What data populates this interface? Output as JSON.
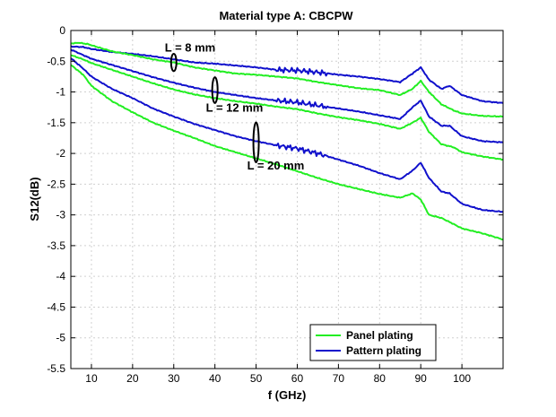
{
  "chart_data": {
    "type": "line",
    "title": "Material type A: CBCPW",
    "xlabel": "f (GHz)",
    "ylabel": "S12(dB)",
    "xlim": [
      5,
      110
    ],
    "ylim": [
      -5.5,
      0
    ],
    "xticks": [
      10,
      20,
      30,
      40,
      50,
      60,
      70,
      80,
      90,
      100
    ],
    "yticks": [
      0,
      -0.5,
      -1,
      -1.5,
      -2,
      -2.5,
      -3,
      -3.5,
      -4,
      -4.5,
      -5,
      -5.5
    ],
    "xtick_labels": [
      "10",
      "20",
      "30",
      "40",
      "50",
      "60",
      "70",
      "80",
      "90",
      "100"
    ],
    "ytick_labels": [
      "0",
      "-0.5",
      "-1",
      "-1.5",
      "-2",
      "-2.5",
      "-3",
      "-3.5",
      "-4",
      "-4.5",
      "-5",
      "-5.5"
    ],
    "grid": true,
    "legend_position": "bottom-right",
    "colors": {
      "panel": "#22ee22",
      "pattern": "#1010cc"
    },
    "legend": [
      {
        "label": "Panel plating",
        "color": "#22ee22"
      },
      {
        "label": "Pattern plating",
        "color": "#1010cc"
      }
    ],
    "annotations": [
      {
        "label": "L = 8 mm",
        "x": 30,
        "y_center": -0.52,
        "y_span": 0.28
      },
      {
        "label": "L = 12 mm",
        "x": 40,
        "y_center": -0.97,
        "y_span": 0.42
      },
      {
        "label": "L = 20 mm",
        "x": 50,
        "y_center": -1.82,
        "y_span": 0.65
      }
    ],
    "series": [
      {
        "group": "L = 8 mm",
        "plating": "Pattern plating",
        "color": "#1010cc",
        "x": [
          5,
          8,
          10,
          15,
          20,
          25,
          30,
          35,
          40,
          45,
          50,
          55,
          60,
          65,
          70,
          75,
          80,
          85,
          88,
          90,
          92,
          95,
          97,
          100,
          105,
          110
        ],
        "y": [
          -0.26,
          -0.27,
          -0.3,
          -0.35,
          -0.38,
          -0.42,
          -0.47,
          -0.52,
          -0.54,
          -0.57,
          -0.6,
          -0.64,
          -0.65,
          -0.68,
          -0.72,
          -0.75,
          -0.79,
          -0.84,
          -0.7,
          -0.6,
          -0.8,
          -0.95,
          -0.9,
          -1.05,
          -1.15,
          -1.18
        ]
      },
      {
        "group": "L = 8 mm",
        "plating": "Panel plating",
        "color": "#22ee22",
        "x": [
          5,
          7,
          9,
          12,
          15,
          20,
          25,
          30,
          35,
          40,
          45,
          50,
          55,
          60,
          65,
          70,
          75,
          80,
          85,
          88,
          90,
          92,
          95,
          98,
          100,
          105,
          110
        ],
        "y": [
          -0.21,
          -0.2,
          -0.22,
          -0.28,
          -0.34,
          -0.4,
          -0.47,
          -0.52,
          -0.6,
          -0.65,
          -0.7,
          -0.72,
          -0.75,
          -0.78,
          -0.84,
          -0.89,
          -0.94,
          -0.97,
          -1.05,
          -0.95,
          -0.82,
          -1.0,
          -1.2,
          -1.3,
          -1.35,
          -1.39,
          -1.4
        ]
      },
      {
        "group": "L = 12 mm",
        "plating": "Pattern plating",
        "color": "#1010cc",
        "x": [
          5,
          8,
          10,
          15,
          20,
          25,
          30,
          35,
          40,
          45,
          50,
          55,
          60,
          65,
          70,
          75,
          80,
          85,
          88,
          90,
          92,
          95,
          97,
          100,
          105,
          110
        ],
        "y": [
          -0.31,
          -0.4,
          -0.46,
          -0.56,
          -0.66,
          -0.76,
          -0.85,
          -0.93,
          -1.0,
          -1.05,
          -1.1,
          -1.14,
          -1.17,
          -1.22,
          -1.27,
          -1.32,
          -1.38,
          -1.44,
          -1.25,
          -1.14,
          -1.4,
          -1.55,
          -1.55,
          -1.72,
          -1.8,
          -1.82
        ]
      },
      {
        "group": "L = 12 mm",
        "plating": "Panel plating",
        "color": "#22ee22",
        "x": [
          5,
          8,
          10,
          15,
          20,
          25,
          30,
          35,
          40,
          45,
          50,
          55,
          60,
          65,
          70,
          75,
          80,
          85,
          88,
          90,
          92,
          95,
          98,
          100,
          105,
          110
        ],
        "y": [
          -0.4,
          -0.47,
          -0.53,
          -0.64,
          -0.75,
          -0.86,
          -0.96,
          -1.04,
          -1.1,
          -1.15,
          -1.19,
          -1.24,
          -1.28,
          -1.35,
          -1.41,
          -1.46,
          -1.52,
          -1.6,
          -1.5,
          -1.42,
          -1.65,
          -1.85,
          -1.9,
          -1.98,
          -2.05,
          -2.1
        ]
      },
      {
        "group": "L = 20 mm",
        "plating": "Pattern plating",
        "color": "#1010cc",
        "x": [
          5,
          8,
          10,
          15,
          20,
          25,
          30,
          35,
          40,
          45,
          50,
          55,
          60,
          65,
          70,
          75,
          80,
          85,
          88,
          90,
          92,
          95,
          97,
          100,
          105,
          110
        ],
        "y": [
          -0.45,
          -0.62,
          -0.75,
          -0.95,
          -1.1,
          -1.27,
          -1.4,
          -1.52,
          -1.62,
          -1.72,
          -1.8,
          -1.87,
          -1.92,
          -2.0,
          -2.1,
          -2.2,
          -2.32,
          -2.42,
          -2.28,
          -2.15,
          -2.4,
          -2.62,
          -2.65,
          -2.82,
          -2.92,
          -2.95
        ]
      },
      {
        "group": "L = 20 mm",
        "plating": "Panel plating",
        "color": "#22ee22",
        "x": [
          5,
          8,
          10,
          15,
          20,
          25,
          30,
          35,
          40,
          45,
          50,
          55,
          60,
          65,
          70,
          75,
          80,
          85,
          88,
          90,
          92,
          95,
          98,
          100,
          105,
          110
        ],
        "y": [
          -0.56,
          -0.72,
          -0.9,
          -1.15,
          -1.33,
          -1.5,
          -1.63,
          -1.75,
          -1.88,
          -1.98,
          -2.08,
          -2.18,
          -2.29,
          -2.4,
          -2.5,
          -2.58,
          -2.66,
          -2.72,
          -2.65,
          -2.75,
          -3.0,
          -3.05,
          -3.15,
          -3.22,
          -3.3,
          -3.4
        ]
      }
    ]
  }
}
